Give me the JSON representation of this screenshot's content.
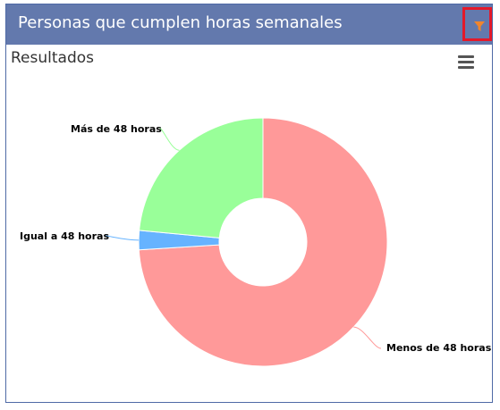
{
  "header": {
    "title": "Personas que cumplen horas semanales",
    "filter_icon": "filter-icon",
    "filter_color": "#f0852d"
  },
  "chart_card": {
    "menu_icon": "hamburger-menu-icon"
  },
  "chart_data": {
    "type": "pie",
    "title": "Resultados",
    "donut": true,
    "categories": [
      "Menos de 48 horas",
      "Igual a 48 horas",
      "Más de 48 horas"
    ],
    "values": [
      74.0,
      2.5,
      23.5
    ],
    "colors": [
      "#ff9999",
      "#66b3ff",
      "#99ff99"
    ]
  }
}
